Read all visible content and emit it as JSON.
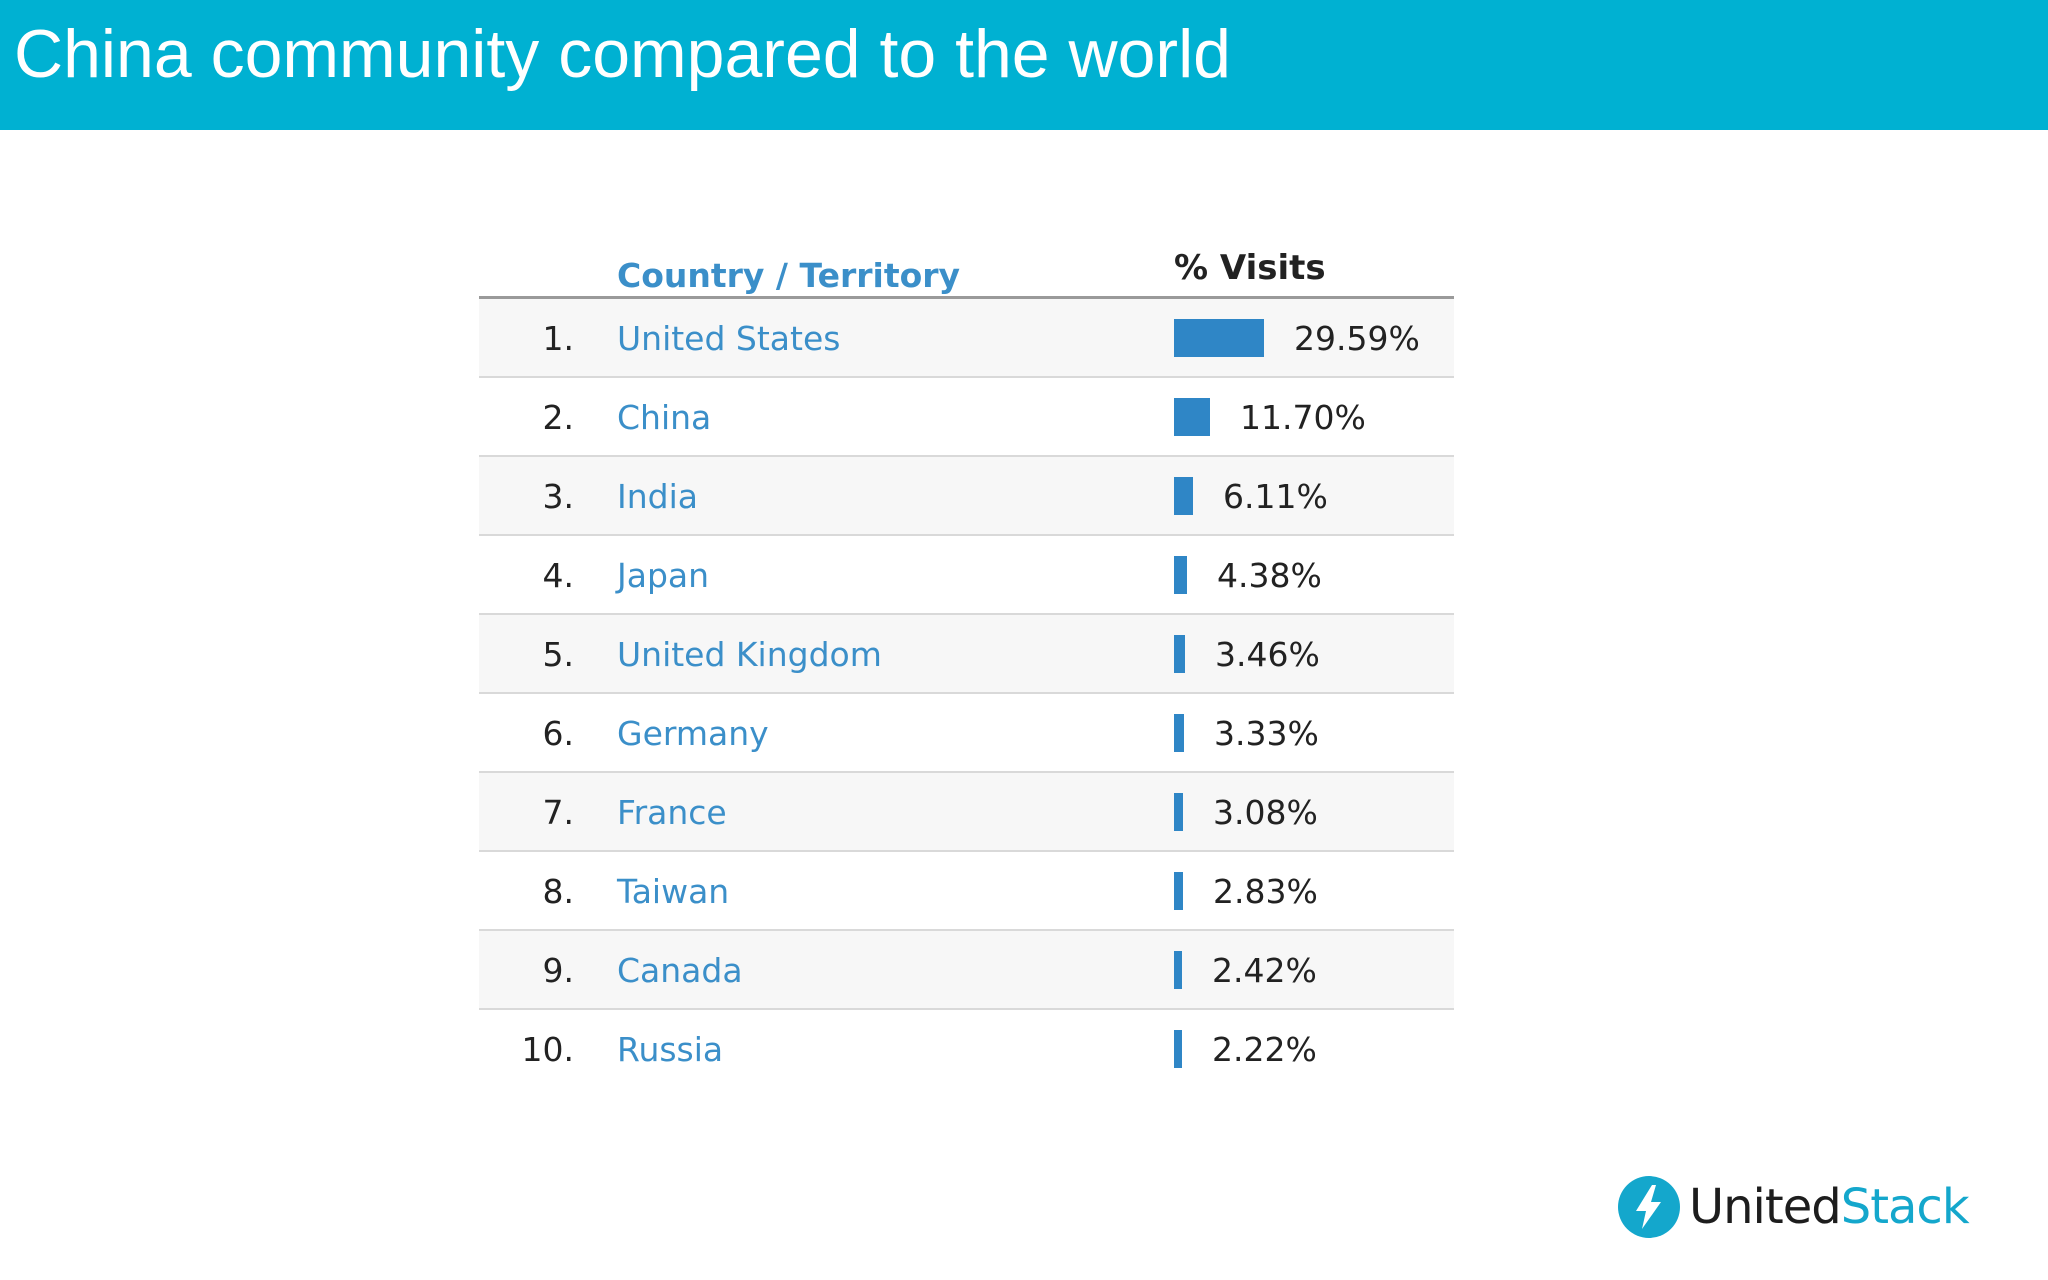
{
  "slide": {
    "title": "China community compared to the world",
    "header_color": "#00b1d2"
  },
  "table": {
    "col_country": "Country / Territory",
    "col_visits": "% Visits",
    "bar_color": "#2f86c6",
    "link_color": "#3b8fc9",
    "rows": [
      {
        "rank": "1.",
        "country": "United States",
        "pct": "29.59%",
        "value": 29.59
      },
      {
        "rank": "2.",
        "country": "China",
        "pct": "11.70%",
        "value": 11.7
      },
      {
        "rank": "3.",
        "country": "India",
        "pct": "6.11%",
        "value": 6.11
      },
      {
        "rank": "4.",
        "country": "Japan",
        "pct": "4.38%",
        "value": 4.38
      },
      {
        "rank": "5.",
        "country": "United Kingdom",
        "pct": "3.46%",
        "value": 3.46
      },
      {
        "rank": "6.",
        "country": "Germany",
        "pct": "3.33%",
        "value": 3.33
      },
      {
        "rank": "7.",
        "country": "France",
        "pct": "3.08%",
        "value": 3.08
      },
      {
        "rank": "8.",
        "country": "Taiwan",
        "pct": "2.83%",
        "value": 2.83
      },
      {
        "rank": "9.",
        "country": "Canada",
        "pct": "2.42%",
        "value": 2.42
      },
      {
        "rank": "10.",
        "country": "Russia",
        "pct": "2.22%",
        "value": 2.22
      }
    ]
  },
  "brand": {
    "name_part1": "United",
    "name_part2": "Stack",
    "icon": "lightning-bolt-icon",
    "color": "#14a7cc"
  }
}
